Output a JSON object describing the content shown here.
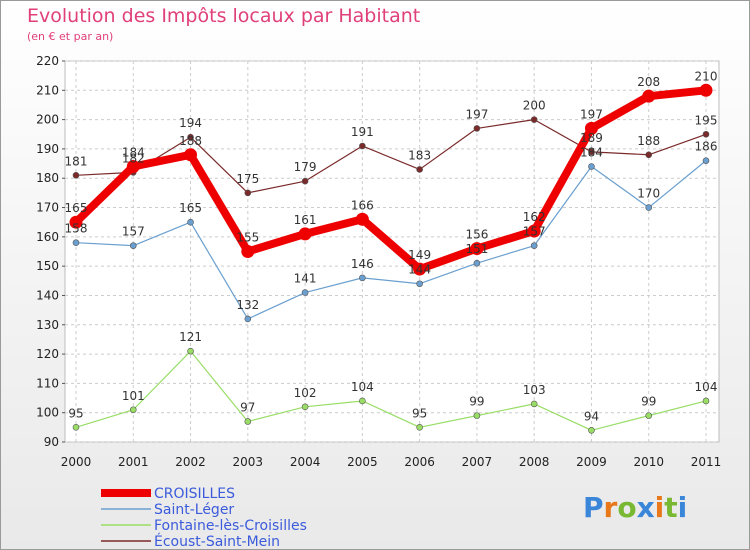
{
  "chart_data": {
    "type": "line",
    "title": "Evolution des Impôts locaux par Habitant",
    "subtitle": "(en € et par an)",
    "categories": [
      "2000",
      "2001",
      "2002",
      "2003",
      "2004",
      "2005",
      "2006",
      "2007",
      "2008",
      "2009",
      "2010",
      "2011"
    ],
    "ylim": [
      90,
      220
    ],
    "yticks": [
      90,
      100,
      110,
      120,
      130,
      140,
      150,
      160,
      170,
      180,
      190,
      200,
      210,
      220
    ],
    "grid": true,
    "legend_position": "bottom-left",
    "series": [
      {
        "name": "CROISILLES",
        "color": "#ee0000",
        "values": [
          165,
          184,
          188,
          155,
          161,
          166,
          149,
          156,
          162,
          197,
          208,
          210
        ],
        "labels": [
          "165",
          "184",
          "188",
          "155",
          "161",
          "166",
          "149",
          "156",
          "162",
          "197",
          "208",
          "210"
        ]
      },
      {
        "name": "Saint-Léger",
        "color": "#6a9fcf",
        "values": [
          158,
          157,
          165,
          132,
          141,
          146,
          144,
          151,
          157,
          184,
          170,
          186
        ],
        "labels": [
          "158",
          "157",
          "165",
          "132",
          "141",
          "146",
          "144",
          "151",
          "157",
          "184",
          "170",
          "186"
        ]
      },
      {
        "name": "Fontaine-lès-Croisilles",
        "color": "#99dd66",
        "values": [
          95,
          101,
          121,
          97,
          102,
          104,
          95,
          99,
          103,
          94,
          99,
          104
        ],
        "labels": [
          "95",
          "101",
          "121",
          "97",
          "102",
          "104",
          "95",
          "99",
          "103",
          "94",
          "99",
          "104"
        ]
      },
      {
        "name": "Écoust-Saint-Mein",
        "color": "#7a2a2a",
        "values": [
          181,
          182,
          194,
          175,
          179,
          191,
          183,
          197,
          200,
          189,
          188,
          195
        ],
        "labels": [
          "181",
          "182",
          "194",
          "175",
          "179",
          "191",
          "183",
          "197",
          "200",
          "189",
          "188",
          "195"
        ]
      }
    ]
  },
  "branding": {
    "letters": [
      "P",
      "r",
      "o",
      "x",
      "i",
      "t",
      "i"
    ],
    "colors": [
      "#3a86d8",
      "#e8781a",
      "#78b832",
      "#3a86d8",
      "#e8781a",
      "#78b832",
      "#3a86d8"
    ]
  }
}
